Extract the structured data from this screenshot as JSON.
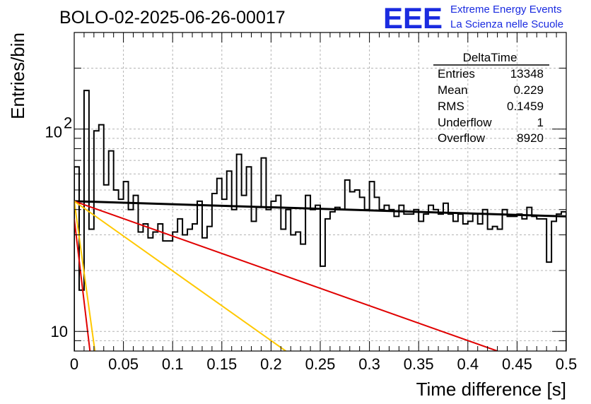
{
  "header": {
    "title": "BOLO-02-2025-06-26-00017",
    "logo_text": "EEE",
    "logo_line1": "Extreme Energy Events",
    "logo_line2": "La Scienza nelle Scuole",
    "logo_color": "#1a2be0"
  },
  "stats": {
    "name": "DeltaTime",
    "rows": [
      {
        "label": "Entries",
        "value": "13348"
      },
      {
        "label": "Mean",
        "value": "0.229"
      },
      {
        "label": "RMS",
        "value": "0.1459"
      },
      {
        "label": "Underflow",
        "value": "1"
      },
      {
        "label": "Overflow",
        "value": "8920"
      }
    ]
  },
  "chart_data": {
    "type": "line",
    "title": "BOLO-02-2025-06-26-00017",
    "xlabel": "Time difference [s]",
    "ylabel": "Entries/bin",
    "xlim": [
      0,
      0.5
    ],
    "ylim": [
      8,
      300
    ],
    "y_scale": "log",
    "grid": true,
    "x_ticks": [
      0,
      0.05,
      0.1,
      0.15,
      0.2,
      0.25,
      0.3,
      0.35,
      0.4,
      0.45,
      0.5
    ],
    "x_tick_labels": [
      "0",
      "0.05",
      "0.1",
      "0.15",
      "0.2",
      "0.25",
      "0.3",
      "0.35",
      "0.4",
      "0.45",
      "0.5"
    ],
    "y_tick_labels": [
      {
        "value": 10,
        "base": "10",
        "exp": ""
      },
      {
        "value": 100,
        "base": "10",
        "exp": "2"
      }
    ],
    "histogram": {
      "bin_width": 0.005,
      "color": "#000000",
      "values": [
        65,
        16,
        155,
        32,
        98,
        105,
        53,
        78,
        50,
        45,
        55,
        40,
        47,
        31,
        34,
        29,
        31,
        34,
        28,
        28,
        31,
        36,
        30,
        32,
        34,
        44,
        29,
        33,
        48,
        57,
        45,
        62,
        40,
        75,
        47,
        65,
        35,
        41,
        72,
        40,
        44,
        47,
        32,
        40,
        30,
        31,
        27,
        47,
        40,
        42,
        21,
        36,
        39,
        41,
        40,
        56,
        49,
        50,
        46,
        40,
        55,
        46,
        40,
        42,
        40,
        37,
        42,
        38,
        38,
        40,
        35,
        38,
        42,
        40,
        38,
        43,
        38,
        35,
        38,
        34,
        35,
        38,
        34,
        40,
        32,
        33,
        32,
        40,
        37,
        37,
        38,
        36,
        41,
        37,
        36,
        36,
        22,
        35,
        38,
        39
      ]
    },
    "series": [
      {
        "color": "#000000",
        "points": [
          [
            0,
            44
          ],
          [
            0.5,
            37
          ]
        ]
      },
      {
        "color": "#e00000",
        "points": [
          [
            0,
            44
          ],
          [
            0.43,
            8
          ]
        ]
      },
      {
        "color": "#ffc800",
        "points": [
          [
            0,
            44
          ],
          [
            0.215,
            8
          ]
        ]
      },
      {
        "color": "#e00000",
        "points": [
          [
            0,
            36
          ],
          [
            0.016,
            8
          ]
        ]
      },
      {
        "color": "#ffc800",
        "points": [
          [
            0,
            44
          ],
          [
            0.021,
            8
          ]
        ]
      }
    ]
  }
}
